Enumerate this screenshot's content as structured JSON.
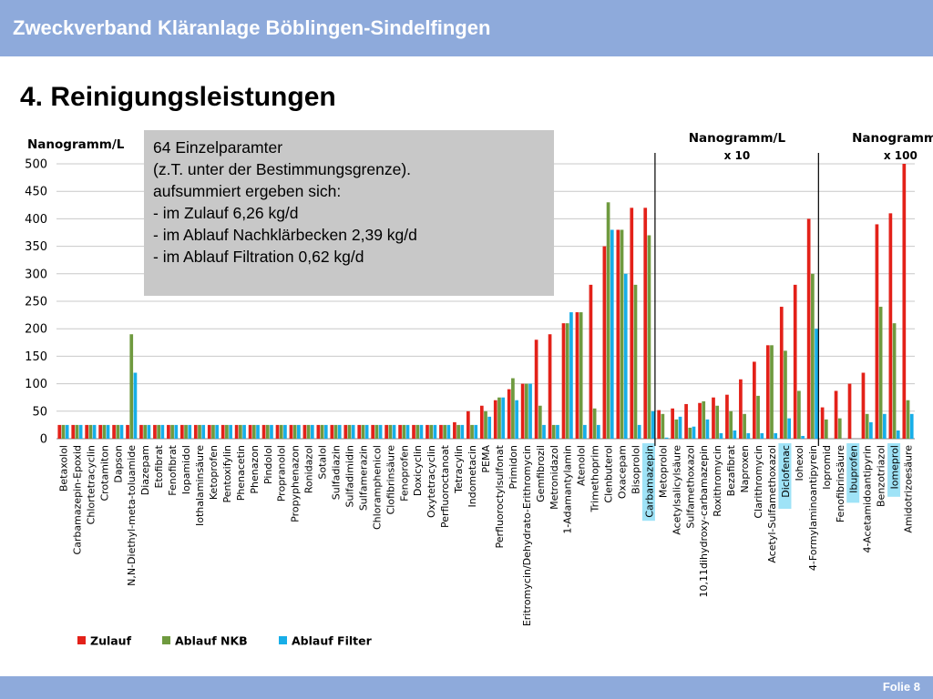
{
  "header": {
    "title": "Zweckverband Kläranlage Böblingen-Sindelfingen"
  },
  "slide": {
    "title": "4. Reinigungsleistungen"
  },
  "footer": {
    "slide_number": "Folie 8"
  },
  "note": {
    "lines": [
      "64 Einzelparamter",
      "(z.T. unter der Bestimmungsgrenze).",
      "aufsummiert ergeben sich:",
      "- im Zulauf 6,26 kg/d",
      "- im Ablauf Nachklärbecken 2,39 kg/d",
      "- im Ablauf Filtration 0,62 kg/d"
    ]
  },
  "colors": {
    "header": "#8eaadb",
    "zulauf": "#e32119",
    "nkb": "#6f9a3f",
    "filter": "#17aee8",
    "highlight": "#9fe3f7",
    "note_bg": "#c8c8c8"
  },
  "chart_data": {
    "type": "bar",
    "ylabel": "Nanogramm/L",
    "ylim": [
      0,
      500
    ],
    "yticks": [
      "0",
      "50",
      "100",
      "150",
      "200",
      "250",
      "300",
      "350",
      "400",
      "450",
      "500"
    ],
    "grid": true,
    "legend_position": "bottom",
    "series": [
      {
        "name": "Zulauf"
      },
      {
        "name": "Ablauf NKB"
      },
      {
        "name": "Ablauf Filter"
      }
    ],
    "scale_groups": [
      {
        "label": "Nanogramm/L",
        "multiplier": "x 10"
      },
      {
        "label": "Nanogramm/L",
        "multiplier": "x 100"
      }
    ],
    "categories": [
      {
        "name": "Betaxolol",
        "values": [
          25,
          25,
          25
        ]
      },
      {
        "name": "Carbamazepin-Epoxid",
        "values": [
          25,
          25,
          25
        ]
      },
      {
        "name": "Chlortetracyclin",
        "values": [
          25,
          25,
          25
        ]
      },
      {
        "name": "Crotamiton",
        "values": [
          25,
          25,
          25
        ]
      },
      {
        "name": "Dapson",
        "values": [
          25,
          25,
          25
        ]
      },
      {
        "name": "N,N-Diethyl-meta-toluamide",
        "values": [
          25,
          190,
          120
        ]
      },
      {
        "name": "Diazepam",
        "values": [
          25,
          25,
          25
        ]
      },
      {
        "name": "Etofibrat",
        "values": [
          25,
          25,
          25
        ]
      },
      {
        "name": "Fenofibrat",
        "values": [
          25,
          25,
          25
        ]
      },
      {
        "name": "Iopamidol",
        "values": [
          25,
          25,
          25
        ]
      },
      {
        "name": "Iothalaminsäure",
        "values": [
          25,
          25,
          25
        ]
      },
      {
        "name": "Ketoprofen",
        "values": [
          25,
          25,
          25
        ]
      },
      {
        "name": "Pentoxifylin",
        "values": [
          25,
          25,
          25
        ]
      },
      {
        "name": "Phenacetin",
        "values": [
          25,
          25,
          25
        ]
      },
      {
        "name": "Phenazon",
        "values": [
          25,
          25,
          25
        ]
      },
      {
        "name": "Pindolol",
        "values": [
          25,
          25,
          25
        ]
      },
      {
        "name": "Propranolol",
        "values": [
          25,
          25,
          25
        ]
      },
      {
        "name": "Propyphenazon",
        "values": [
          25,
          25,
          25
        ]
      },
      {
        "name": "Ronidazol",
        "values": [
          25,
          25,
          25
        ]
      },
      {
        "name": "Sotalol",
        "values": [
          25,
          25,
          25
        ]
      },
      {
        "name": "Sulfadiazin",
        "values": [
          25,
          25,
          25
        ]
      },
      {
        "name": "Sulfadimidin",
        "values": [
          25,
          25,
          25
        ]
      },
      {
        "name": "Sulfamerazin",
        "values": [
          25,
          25,
          25
        ]
      },
      {
        "name": "Chloramphenicol",
        "values": [
          25,
          25,
          25
        ]
      },
      {
        "name": "Clofibrinsäure",
        "values": [
          25,
          25,
          25
        ]
      },
      {
        "name": "Fenoprofen",
        "values": [
          25,
          25,
          25
        ]
      },
      {
        "name": "Doxicyclin",
        "values": [
          25,
          25,
          25
        ]
      },
      {
        "name": "Oxytetracyclin",
        "values": [
          25,
          25,
          25
        ]
      },
      {
        "name": "Perfluoroctanoat",
        "values": [
          25,
          25,
          25
        ]
      },
      {
        "name": "Tetracylin",
        "values": [
          30,
          25,
          25
        ]
      },
      {
        "name": "Indometacin",
        "values": [
          50,
          25,
          25
        ]
      },
      {
        "name": "PEMA",
        "values": [
          60,
          50,
          40
        ]
      },
      {
        "name": "Perfluoroctylsulfonat",
        "values": [
          70,
          75,
          75
        ]
      },
      {
        "name": "Primidon",
        "values": [
          90,
          110,
          70
        ]
      },
      {
        "name": "Eritromycin/Dehydrato-Erithromycin",
        "values": [
          100,
          100,
          100
        ]
      },
      {
        "name": "Gemfibrozil",
        "values": [
          180,
          60,
          25
        ]
      },
      {
        "name": "Metronidazol",
        "values": [
          190,
          25,
          25
        ]
      },
      {
        "name": "1-Adamantylamin",
        "values": [
          210,
          210,
          230
        ]
      },
      {
        "name": "Atenolol",
        "values": [
          230,
          230,
          25
        ]
      },
      {
        "name": "Trimethoprim",
        "values": [
          280,
          55,
          25
        ]
      },
      {
        "name": "Clenbuterol",
        "values": [
          350,
          430,
          380
        ]
      },
      {
        "name": "Oxacepam",
        "values": [
          380,
          380,
          300
        ]
      },
      {
        "name": "Bisoprolol",
        "values": [
          420,
          280,
          25
        ]
      },
      {
        "name": "Carbamazepin",
        "values": [
          420,
          370,
          50
        ],
        "highlight": true
      },
      {
        "name": "Metoprolol",
        "values": [
          52,
          45,
          2
        ]
      },
      {
        "name": "Acetylsalicylsäure",
        "values": [
          55,
          35,
          40
        ]
      },
      {
        "name": "Sulfamethoxazol",
        "values": [
          63,
          20,
          22
        ]
      },
      {
        "name": "10,11dihydroxy-carbamazepin",
        "values": [
          65,
          68,
          35
        ]
      },
      {
        "name": "Roxithromycin",
        "values": [
          75,
          60,
          10
        ]
      },
      {
        "name": "Bezafibrat",
        "values": [
          80,
          50,
          15
        ]
      },
      {
        "name": "Naproxen",
        "values": [
          108,
          45,
          10
        ]
      },
      {
        "name": "Clarithromycin",
        "values": [
          140,
          78,
          10
        ]
      },
      {
        "name": "Acetyl-Sulfamethoxazol",
        "values": [
          170,
          170,
          10
        ]
      },
      {
        "name": "Diclofenac",
        "values": [
          240,
          160,
          37
        ],
        "highlight": true
      },
      {
        "name": "Iohexol",
        "values": [
          280,
          87,
          5
        ]
      },
      {
        "name": "4-Formylaminoantipyrein",
        "values": [
          400,
          300,
          200
        ]
      },
      {
        "name": "Iopromid",
        "values": [
          57,
          35,
          0
        ]
      },
      {
        "name": "Fenofibrinsäure",
        "values": [
          87,
          37,
          0
        ]
      },
      {
        "name": "Ibuprofen",
        "values": [
          100,
          0,
          0
        ],
        "highlight": true
      },
      {
        "name": "4-Acetamidoantipyrin",
        "values": [
          120,
          45,
          30
        ]
      },
      {
        "name": "Benzotriazol",
        "values": [
          390,
          240,
          45
        ]
      },
      {
        "name": "Iomeprol",
        "values": [
          410,
          210,
          15
        ],
        "highlight": true
      },
      {
        "name": "Amidotrizoesäure",
        "values": [
          500,
          70,
          45
        ]
      }
    ]
  }
}
